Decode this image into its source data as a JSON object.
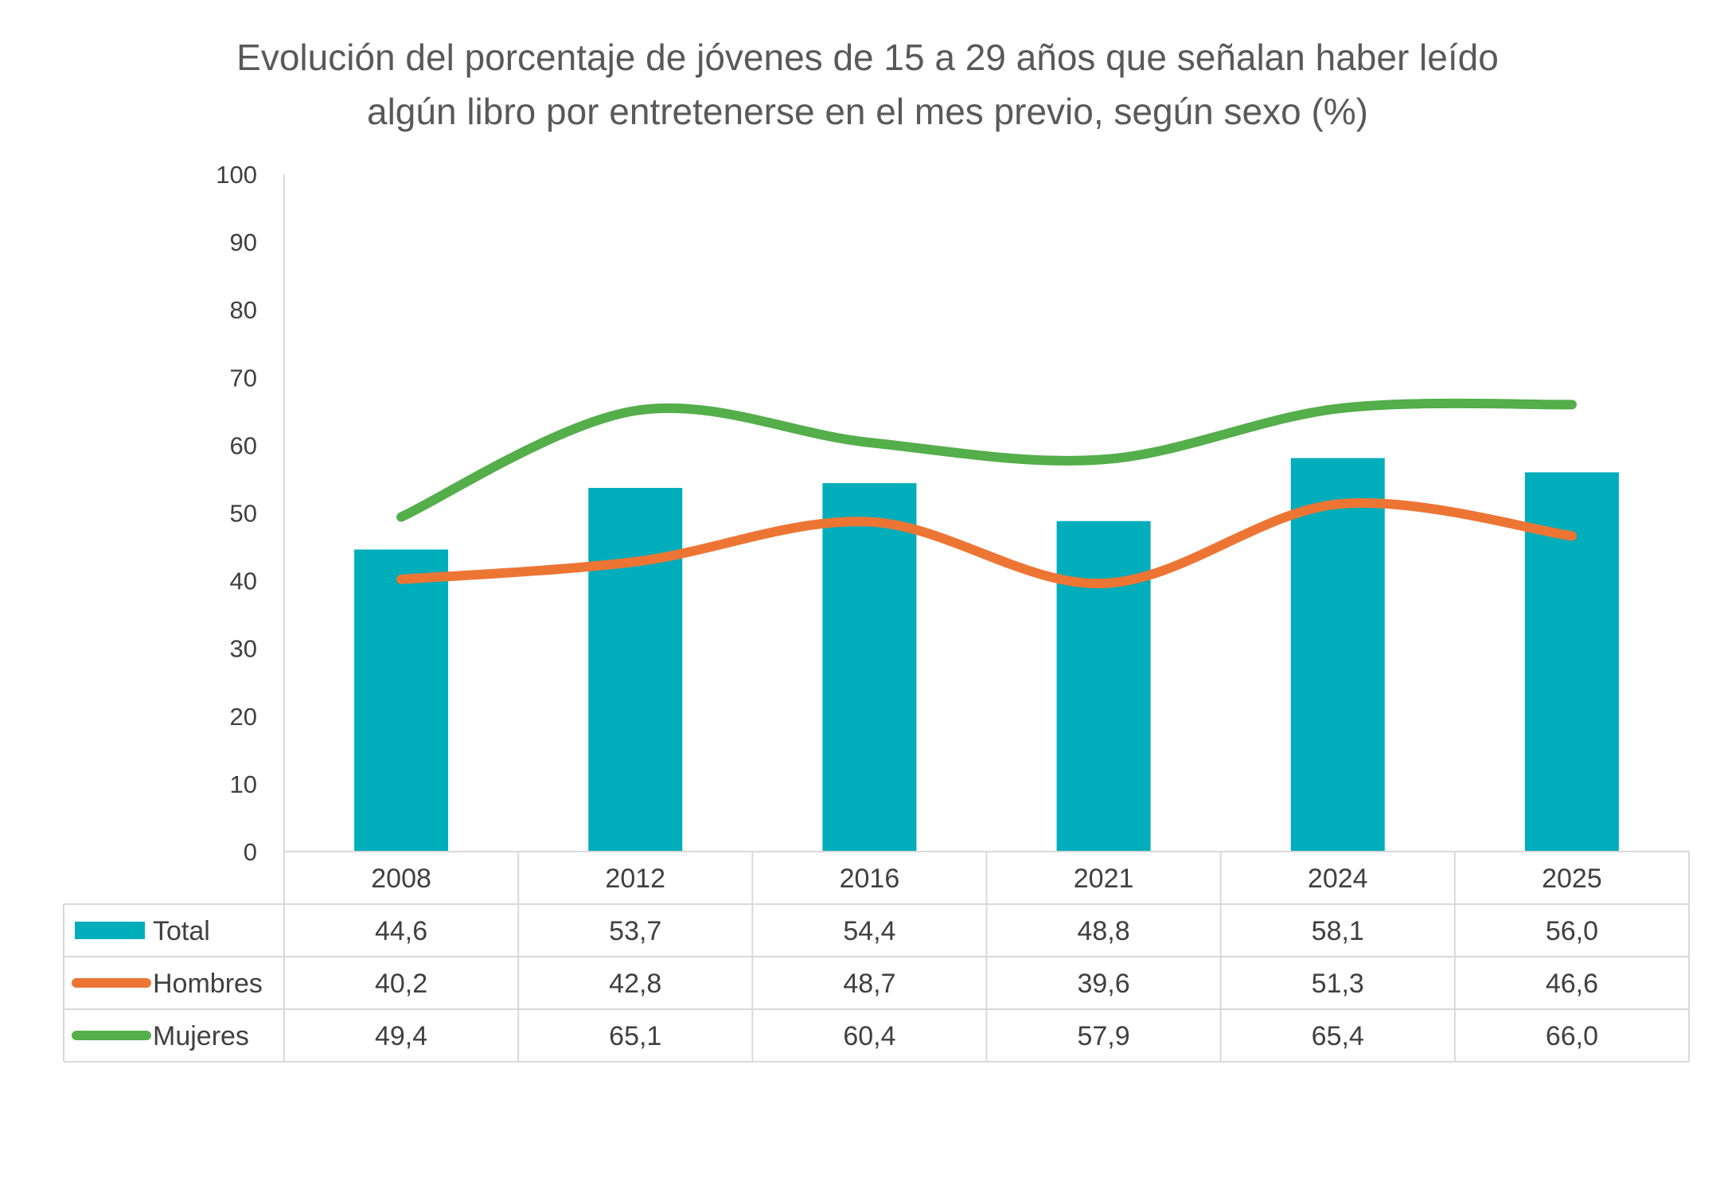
{
  "chart_data": {
    "type": "bar",
    "title_lines": [
      "Evolución del porcentaje de jóvenes de 15 a 29 años que señalan haber leído",
      "algún libro por entretenerse en el mes previo, según sexo (%)"
    ],
    "categories": [
      "2008",
      "2012",
      "2016",
      "2021",
      "2024",
      "2025"
    ],
    "ylim": [
      0,
      100
    ],
    "yticks": [
      "0",
      "10",
      "20",
      "30",
      "40",
      "50",
      "60",
      "70",
      "80",
      "90",
      "100"
    ],
    "grid": false,
    "legend": "data-table",
    "series": [
      {
        "name": "Total",
        "type": "bar",
        "color": "#00ADBB",
        "values": [
          44.6,
          53.7,
          54.4,
          48.8,
          58.1,
          56.0
        ],
        "labels": [
          "44,6",
          "53,7",
          "54,4",
          "48,8",
          "58,1",
          "56,0"
        ]
      },
      {
        "name": "Hombres",
        "type": "line",
        "color": "#ED7534",
        "values": [
          40.2,
          42.8,
          48.7,
          39.6,
          51.3,
          46.6
        ],
        "labels": [
          "40,2",
          "42,8",
          "48,7",
          "39,6",
          "51,3",
          "46,6"
        ]
      },
      {
        "name": "Mujeres",
        "type": "line",
        "color": "#54AE4A",
        "values": [
          49.4,
          65.1,
          60.4,
          57.9,
          65.4,
          66.0
        ],
        "labels": [
          "49,4",
          "65,1",
          "60,4",
          "57,9",
          "65,4",
          "66,0"
        ]
      }
    ]
  }
}
